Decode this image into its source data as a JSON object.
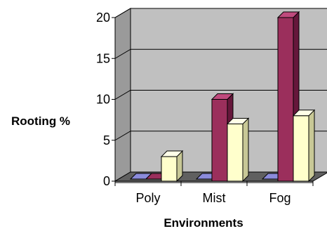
{
  "chart_data": {
    "type": "bar",
    "categories": [
      "Poly",
      "Mist",
      "Fog"
    ],
    "series": [
      {
        "values": [
          0,
          0,
          0
        ]
      },
      {
        "values": [
          0,
          10,
          20
        ]
      },
      {
        "values": [
          3,
          7,
          8
        ]
      }
    ],
    "xlabel": "Environments",
    "ylabel": "Rooting %",
    "ylim": [
      0,
      20
    ],
    "yticks": [
      "0",
      "5",
      "10",
      "15",
      "20"
    ],
    "grid": true,
    "colors": {
      "series": [
        "#8b8bdb",
        "#9b2f5c",
        "#ffffcc"
      ],
      "series_side": [
        "#5a5aa8",
        "#66173b",
        "#c8c896"
      ],
      "series_top": [
        "#b4b4f0",
        "#bf4a7d",
        "#ffffe8"
      ],
      "plot_back": "#c0c0c0",
      "plot_side": "#9a9a9a",
      "floor": "#606060",
      "floor_front": "#7a7a7a",
      "grid": "#000000"
    }
  }
}
